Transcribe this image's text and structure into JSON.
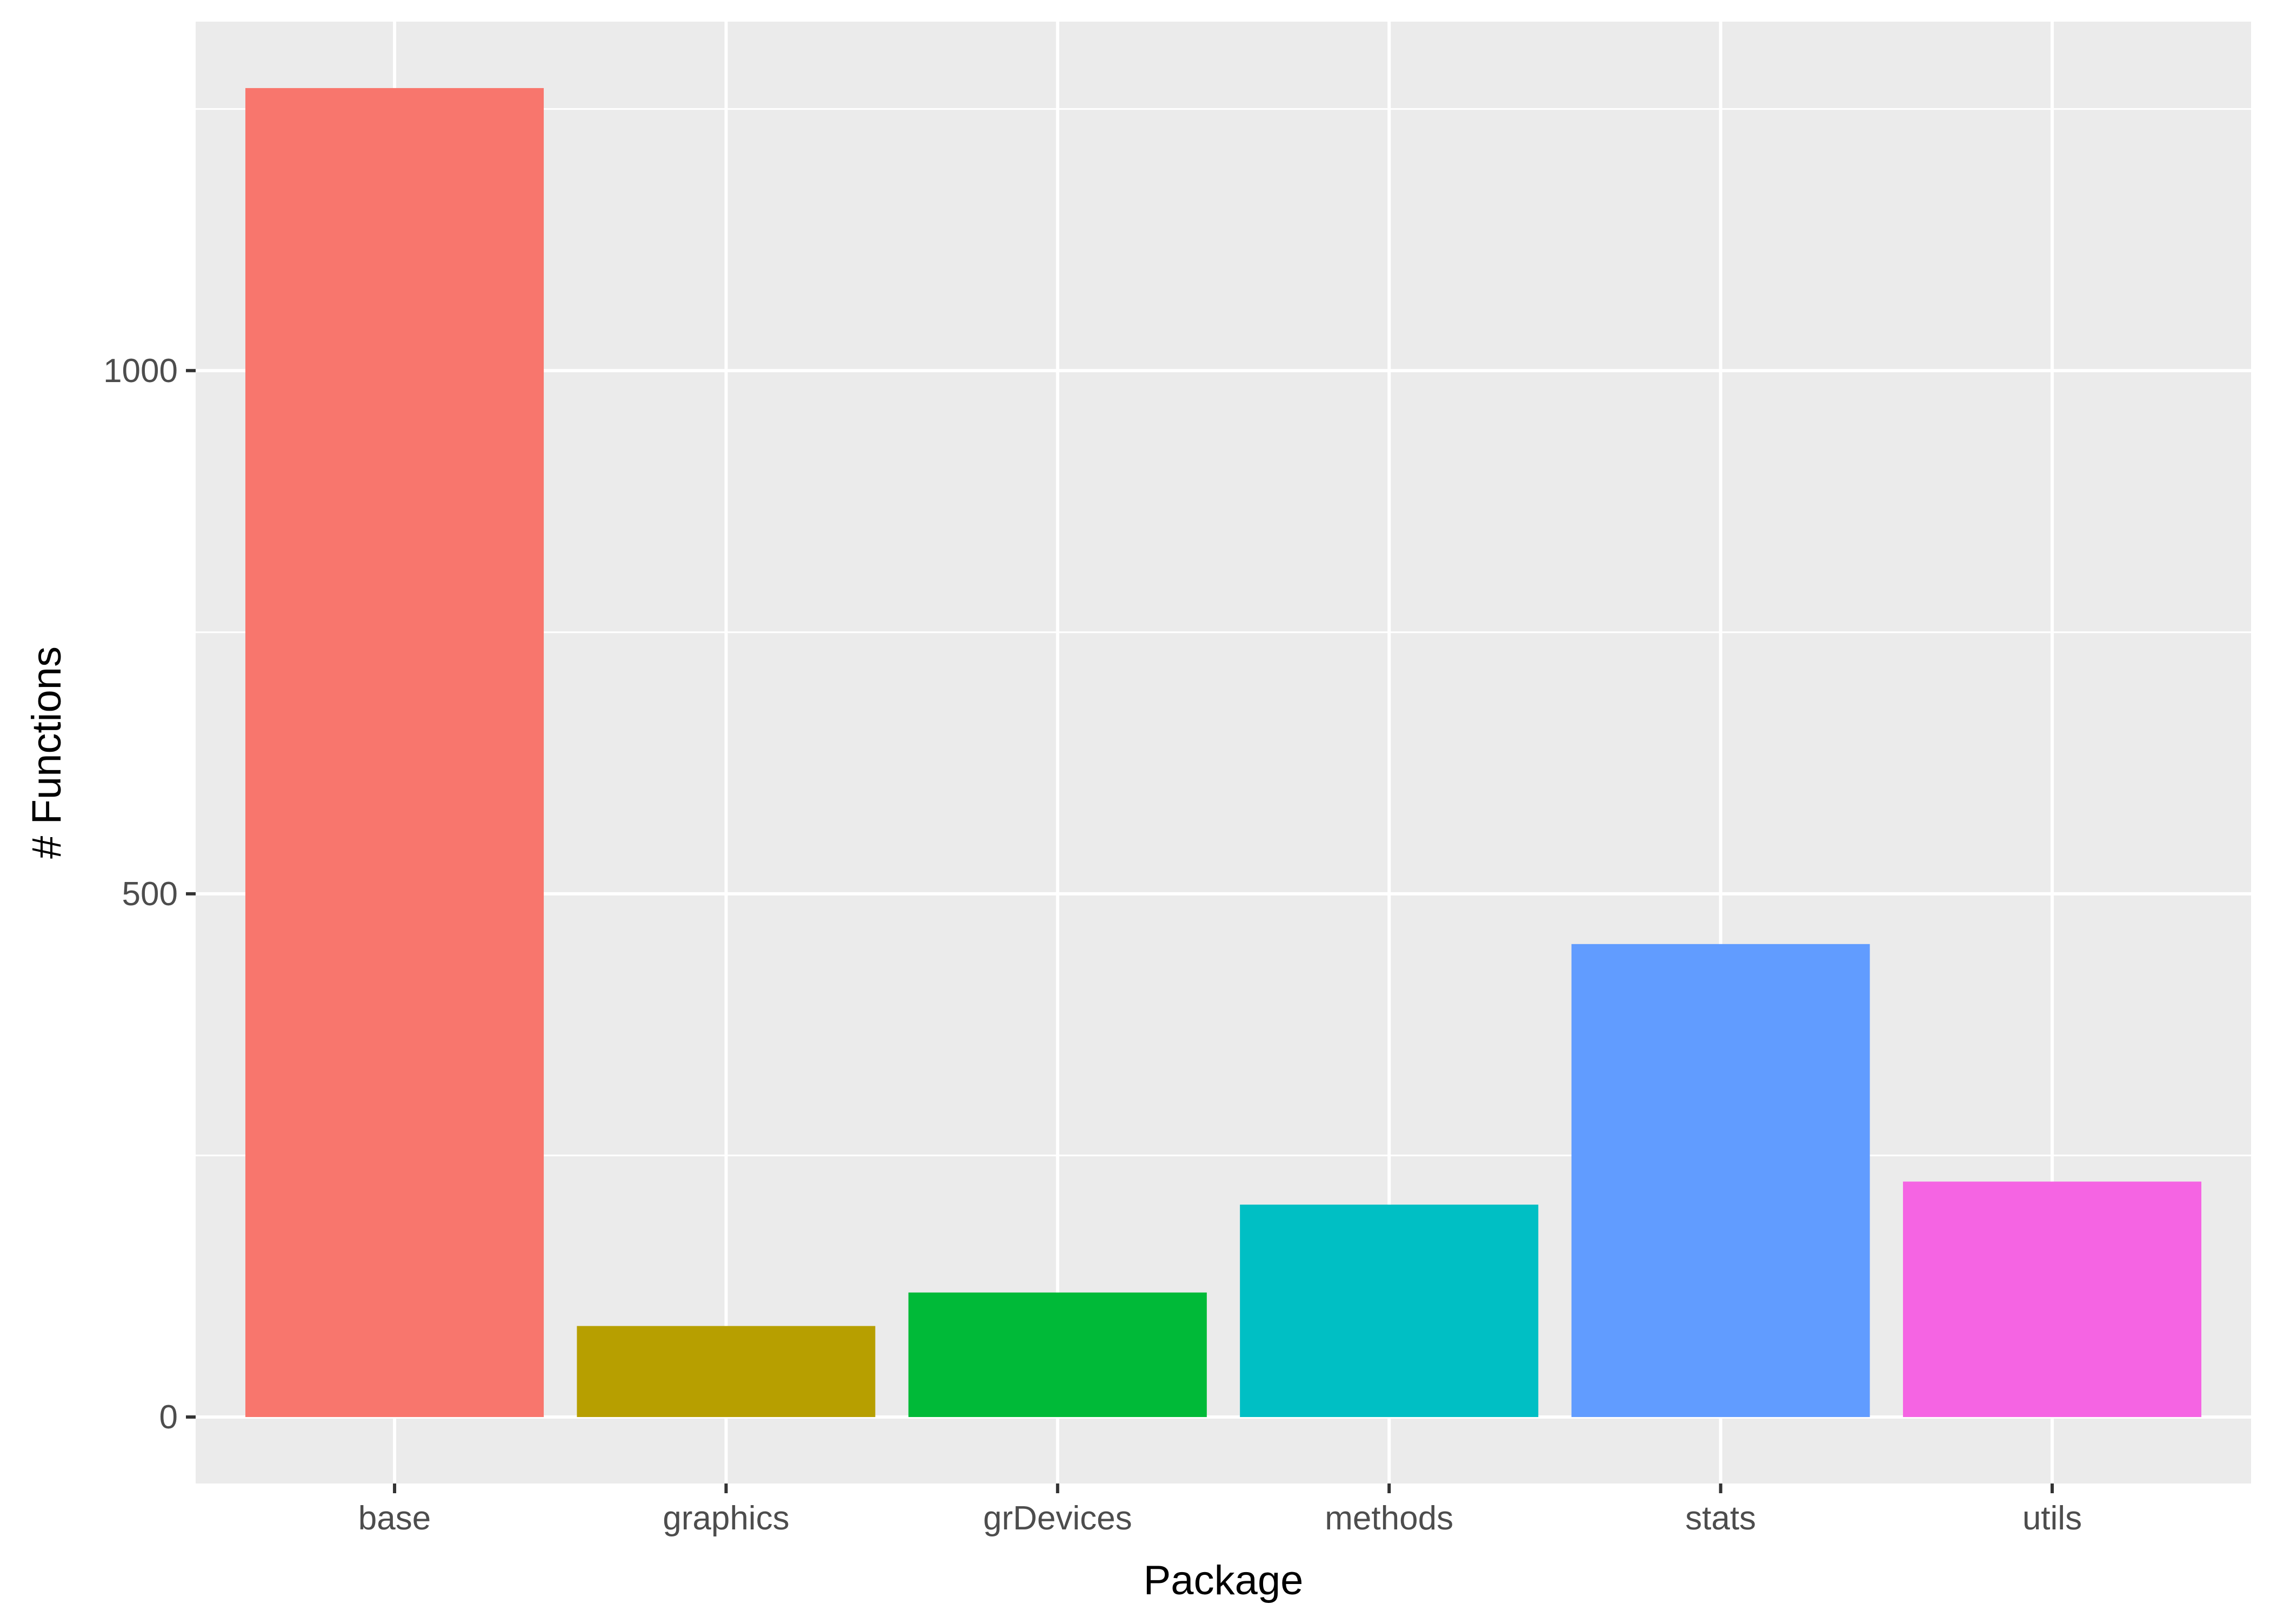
{
  "chart_data": {
    "type": "bar",
    "title": "",
    "xlabel": "Package",
    "ylabel": "# Functions",
    "categories": [
      "base",
      "graphics",
      "grDevices",
      "methods",
      "stats",
      "utils"
    ],
    "values": [
      1270,
      87,
      119,
      203,
      452,
      225
    ],
    "colors": [
      "#F8766D",
      "#B79F00",
      "#00BA38",
      "#00BFC4",
      "#619CFF",
      "#F564E3"
    ],
    "ylim": [
      -63.5,
      1333.5
    ],
    "yticks": [
      0,
      500,
      1000
    ],
    "ytick_labels": [
      "0",
      "500",
      "1000"
    ],
    "y_minor_ticks": [
      250,
      750,
      1250
    ],
    "grid": true,
    "legend": "none",
    "panel_background": "#EBEBEB",
    "grid_color": "#FFFFFF"
  }
}
